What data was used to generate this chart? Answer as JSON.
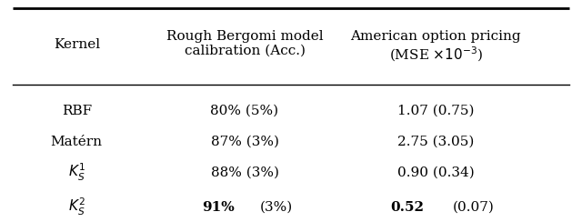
{
  "col_headers": [
    "Kernel",
    "Rough Bergomi model\ncalibration (Acc.)",
    "American option pricing\n(MSE ×10⁻³)"
  ],
  "rows": [
    {
      "kernel": "RBF",
      "acc": "80% (5%)",
      "mse": "1.07 (0.75)"
    },
    {
      "kernel": "Matérn",
      "acc": "87% (3%)",
      "mse": "2.75 (3.05)"
    },
    {
      "kernel": "K_S^1",
      "acc": "88% (3%)",
      "mse": "0.90 (0.34)"
    },
    {
      "kernel": "K_S^2",
      "acc": "91% (3%)",
      "mse": "0.52 (0.07)"
    }
  ],
  "bold_row": 3,
  "header_fontsize": 11,
  "cell_fontsize": 11,
  "figsize": [
    6.4,
    2.44
  ],
  "dpi": 100
}
